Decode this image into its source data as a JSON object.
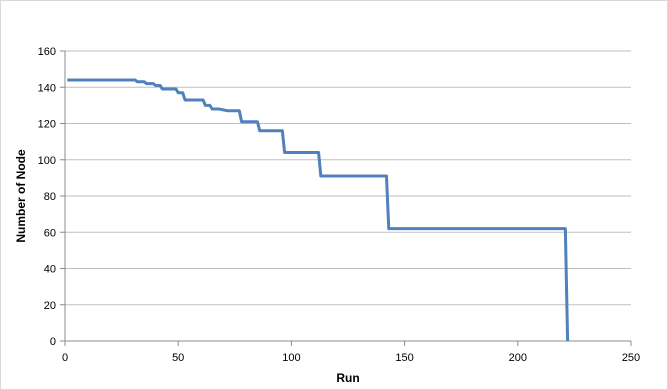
{
  "chart_data": {
    "type": "line",
    "title": "",
    "xlabel": "Run",
    "ylabel": "Number of Node",
    "xlim": [
      0,
      250
    ],
    "ylim": [
      0,
      160
    ],
    "xticks": [
      0,
      50,
      100,
      150,
      200,
      250
    ],
    "yticks": [
      0,
      20,
      40,
      60,
      80,
      100,
      120,
      140,
      160
    ],
    "grid": "horizontal",
    "legend": "none",
    "line_color": "#4f81bd",
    "series": [
      {
        "x": [
          1,
          31,
          32,
          35,
          36,
          39,
          40,
          42,
          43,
          49,
          50,
          52,
          53,
          61,
          62,
          64,
          65,
          67,
          68,
          72,
          73,
          77,
          78,
          85,
          86,
          96,
          97,
          112,
          113,
          142,
          143,
          221,
          222
        ],
        "y": [
          144,
          144,
          143,
          143,
          142,
          142,
          141,
          141,
          139,
          139,
          137,
          137,
          133,
          133,
          130,
          130,
          128,
          128,
          128,
          127,
          127,
          127,
          121,
          121,
          116,
          116,
          104,
          104,
          91,
          91,
          62,
          62,
          0
        ]
      }
    ]
  }
}
